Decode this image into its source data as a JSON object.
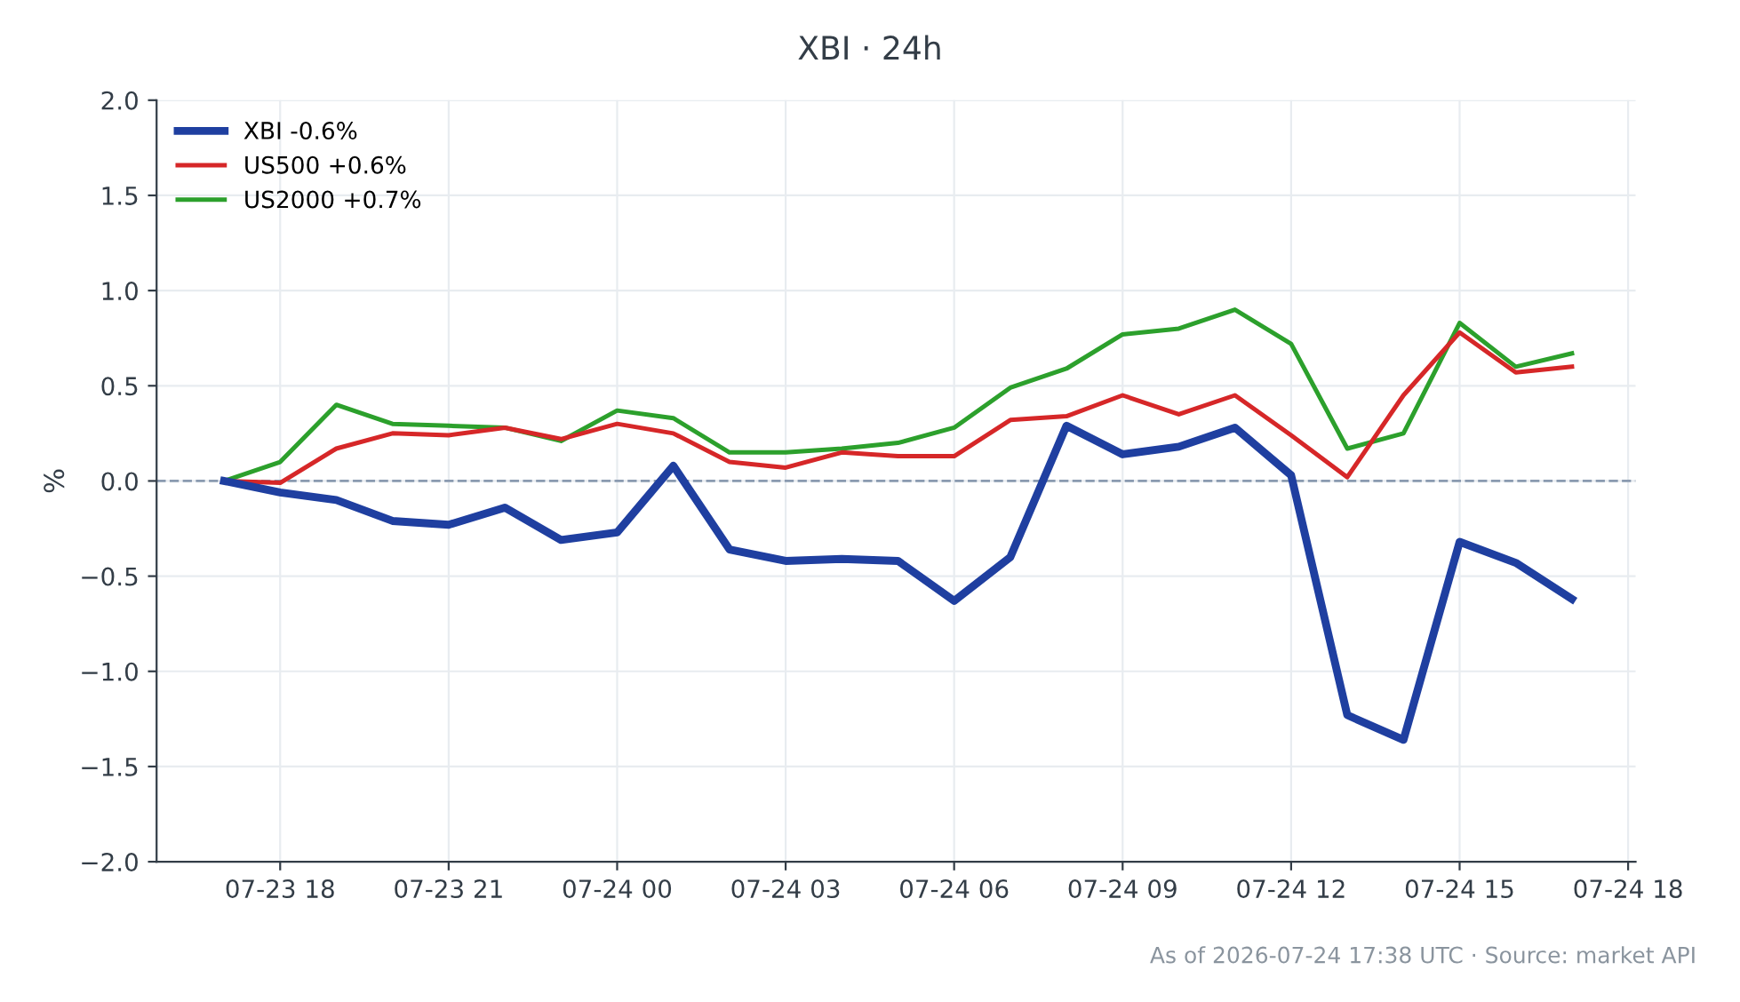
{
  "chart_data": {
    "type": "line",
    "title": "XBI · 24h",
    "ylabel": "%",
    "x": [
      "2026-07-23T17:00",
      "2026-07-23T18:00",
      "2026-07-23T19:00",
      "2026-07-23T20:00",
      "2026-07-23T21:00",
      "2026-07-23T22:00",
      "2026-07-23T23:00",
      "2026-07-24T00:00",
      "2026-07-24T01:00",
      "2026-07-24T02:00",
      "2026-07-24T03:00",
      "2026-07-24T04:00",
      "2026-07-24T05:00",
      "2026-07-24T06:00",
      "2026-07-24T07:00",
      "2026-07-24T08:00",
      "2026-07-24T09:00",
      "2026-07-24T10:00",
      "2026-07-24T11:00",
      "2026-07-24T12:00",
      "2026-07-24T13:00",
      "2026-07-24T14:00",
      "2026-07-24T15:00",
      "2026-07-24T16:00",
      "2026-07-24T17:00"
    ],
    "series": [
      {
        "name": "XBI -0.6%",
        "color": "#1f3fa0",
        "values": [
          0,
          -0.06,
          -0.1,
          -0.21,
          -0.23,
          -0.14,
          -0.31,
          -0.27,
          0.08,
          -0.36,
          -0.42,
          -0.41,
          -0.42,
          -0.63,
          -0.4,
          0.29,
          0.14,
          0.18,
          0.28,
          0.03,
          -1.23,
          -1.36,
          -0.32,
          -0.43,
          -0.62
        ]
      },
      {
        "name": "US500 +0.6%",
        "color": "#d62728",
        "values": [
          0,
          -0.01,
          0.17,
          0.25,
          0.24,
          0.28,
          0.22,
          0.3,
          0.25,
          0.1,
          0.07,
          0.15,
          0.13,
          0.13,
          0.32,
          0.34,
          0.45,
          0.35,
          0.45,
          0.24,
          0.02,
          0.45,
          0.78,
          0.57,
          0.6
        ]
      },
      {
        "name": "US2000 +0.7%",
        "color": "#2ca02c",
        "values": [
          0,
          0.1,
          0.4,
          0.3,
          0.29,
          0.28,
          0.21,
          0.37,
          0.33,
          0.15,
          0.15,
          0.17,
          0.2,
          0.28,
          0.49,
          0.59,
          0.77,
          0.8,
          0.9,
          0.72,
          0.17,
          0.25,
          0.83,
          0.6,
          0.67
        ]
      }
    ],
    "xlim": [
      "2026-07-23T15:48",
      "2026-07-24T18:08"
    ],
    "xticks": [
      {
        "value": "2026-07-23T18:00",
        "label": "07-23 18"
      },
      {
        "value": "2026-07-23T21:00",
        "label": "07-23 21"
      },
      {
        "value": "2026-07-24T00:00",
        "label": "07-24 00"
      },
      {
        "value": "2026-07-24T03:00",
        "label": "07-24 03"
      },
      {
        "value": "2026-07-24T06:00",
        "label": "07-24 06"
      },
      {
        "value": "2026-07-24T09:00",
        "label": "07-24 09"
      },
      {
        "value": "2026-07-24T12:00",
        "label": "07-24 12"
      },
      {
        "value": "2026-07-24T15:00",
        "label": "07-24 15"
      },
      {
        "value": "2026-07-24T18:00",
        "label": "07-24 18"
      }
    ],
    "ylim": [
      -2.0,
      2.0
    ],
    "yticks": [
      {
        "value": -2.0,
        "label": "−2.0"
      },
      {
        "value": -1.5,
        "label": "−1.5"
      },
      {
        "value": -1.0,
        "label": "−1.0"
      },
      {
        "value": -0.5,
        "label": "−0.5"
      },
      {
        "value": 0.0,
        "label": "0.0"
      },
      {
        "value": 0.5,
        "label": "0.5"
      },
      {
        "value": 1.0,
        "label": "1.0"
      },
      {
        "value": 1.5,
        "label": "1.5"
      },
      {
        "value": 2.0,
        "label": "2.0"
      }
    ],
    "ref_lines": [
      {
        "axis": "y",
        "value": 0,
        "label": null,
        "color": "#8a9ab0",
        "line_style": "dashed"
      }
    ],
    "grid": true,
    "legend": "top left",
    "line_style": "solid",
    "marker": "none",
    "annotations": [
      "As of 2026-07-24 17:38 UTC · Source: market API"
    ]
  }
}
